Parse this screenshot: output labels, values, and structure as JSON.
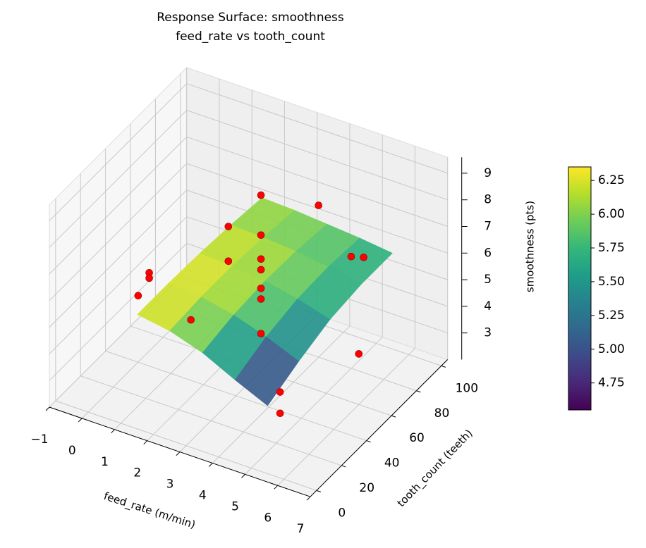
{
  "chart_data": {
    "type": "surface3d",
    "title": "Response Surface: smoothness",
    "subtitle": "feed_rate vs tooth_count",
    "xlabel": "feed_rate (m/min)",
    "ylabel": "tooth_count (teeth)",
    "zlabel": "smoothness (pts)",
    "xlim": [
      -1,
      7
    ],
    "ylim": [
      -5,
      105
    ],
    "zlim": [
      2,
      9.6
    ],
    "xticks": [
      {
        "value": -1,
        "label": "−1"
      },
      0,
      1,
      2,
      3,
      4,
      5,
      6,
      7
    ],
    "yticks": [
      0,
      20,
      40,
      60,
      80,
      100
    ],
    "zticks": [
      3,
      4,
      5,
      6,
      7,
      8,
      9
    ],
    "grid": true,
    "colormap": "viridis",
    "clim": [
      4.55,
      6.35
    ],
    "cticks": [
      4.75,
      5.0,
      5.25,
      5.5,
      5.75,
      6.0,
      6.25
    ],
    "cticks_labels": [
      "4.75",
      "5.00",
      "5.25",
      "5.50",
      "5.75",
      "6.00",
      "6.25"
    ],
    "surface": {
      "x": [
        1.5,
        2.5,
        3.5,
        4.5,
        5.5
      ],
      "y": [
        0,
        25,
        50,
        75,
        100
      ],
      "z": [
        [
          6.3,
          6.3,
          6.25,
          6.15,
          6.0
        ],
        [
          6.1,
          6.2,
          6.2,
          6.1,
          5.95
        ],
        [
          5.7,
          5.95,
          6.05,
          6.0,
          5.85
        ],
        [
          5.1,
          5.55,
          5.8,
          5.85,
          5.75
        ],
        [
          4.55,
          5.05,
          5.45,
          5.6,
          5.6
        ]
      ]
    },
    "points": {
      "color": "#ff0000",
      "x": [
        3,
        3,
        3,
        3,
        3,
        3,
        3,
        4,
        2,
        2,
        5,
        5,
        -1,
        -1,
        0,
        2,
        6,
        5.5,
        5.5
      ],
      "y": [
        60,
        60,
        60,
        60,
        60,
        60,
        60,
        80,
        60,
        60,
        90,
        80,
        75,
        75,
        40,
        30,
        60,
        10,
        10
      ],
      "z": [
        8.6,
        7.1,
        6.2,
        5.8,
        5.1,
        4.7,
        3.4,
        7.7,
        7.0,
        5.7,
        5.7,
        6.2,
        3.3,
        3.1,
        4.5,
        4.9,
        3.9,
        4.6,
        3.8
      ]
    }
  }
}
